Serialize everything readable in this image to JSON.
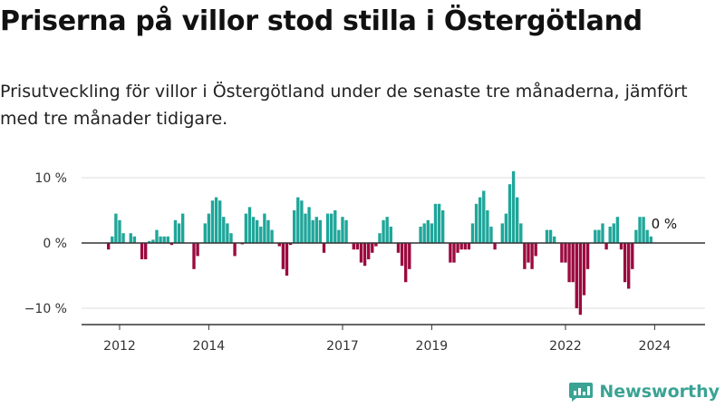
{
  "header": {
    "title": "Priserna på villor stod stilla i Östergötland",
    "subtitle": "Prisutveckling för villor i Östergötland under de senaste tre månaderna, jämfört med tre månader tidigare."
  },
  "brand": {
    "name": "Newsworthy"
  },
  "colors": {
    "positive": "#1fa69a",
    "negative": "#9b0a3e",
    "grid": "#dddddd",
    "axis": "#333333",
    "brand": "#3aa394"
  },
  "chart_data": {
    "type": "bar",
    "ylim": [
      -12,
      12
    ],
    "y_ticks": [
      10,
      0,
      -10
    ],
    "y_tick_labels": [
      "10 %",
      "0 %",
      "−10 %"
    ],
    "x_ticks": [
      {
        "label": "2012",
        "index": 3
      },
      {
        "label": "2014",
        "index": 27
      },
      {
        "label": "2017",
        "index": 63
      },
      {
        "label": "2019",
        "index": 87
      },
      {
        "label": "2022",
        "index": 123
      },
      {
        "label": "2024",
        "index": 147
      }
    ],
    "annotation": {
      "label": "0 %"
    },
    "values": [
      -1,
      1,
      4.5,
      3.5,
      1.5,
      0,
      1.5,
      1,
      0,
      -2.5,
      -2.5,
      0.3,
      0.5,
      2,
      1,
      1,
      1,
      -0.3,
      3.5,
      3,
      4.5,
      0,
      0,
      -4,
      -2,
      0,
      3,
      4.5,
      6.5,
      7,
      6.5,
      4,
      3,
      1.5,
      -2,
      0,
      -0.2,
      4.5,
      5.5,
      4,
      3.5,
      2.5,
      4.5,
      3.5,
      2,
      0,
      -0.5,
      -4,
      -5,
      -0.3,
      5,
      7,
      6.5,
      4.5,
      5.5,
      3.5,
      4,
      3.5,
      -1.5,
      4.5,
      4.5,
      5,
      2,
      4,
      3.5,
      0,
      -1,
      -1,
      -3,
      -3.5,
      -2.5,
      -1.5,
      -0.5,
      1.5,
      3.5,
      4,
      2.5,
      0,
      -1.5,
      -3.5,
      -6,
      -4,
      0,
      0,
      2.5,
      3,
      3.5,
      3,
      6,
      6,
      5,
      0,
      -3,
      -3,
      -1.5,
      -1,
      -1,
      -1,
      3,
      6,
      7,
      8,
      5,
      2.5,
      -1,
      0,
      3,
      4.5,
      9,
      11,
      7,
      3,
      -4,
      -3,
      -4,
      -2,
      0,
      0,
      2,
      2,
      1,
      0,
      -3,
      -3,
      -6,
      -6,
      -10,
      -11,
      -8,
      -4,
      0,
      2,
      2,
      3,
      -1,
      2.5,
      3,
      4,
      -1,
      -6,
      -7,
      -4,
      2,
      4,
      4,
      2,
      1
    ]
  }
}
